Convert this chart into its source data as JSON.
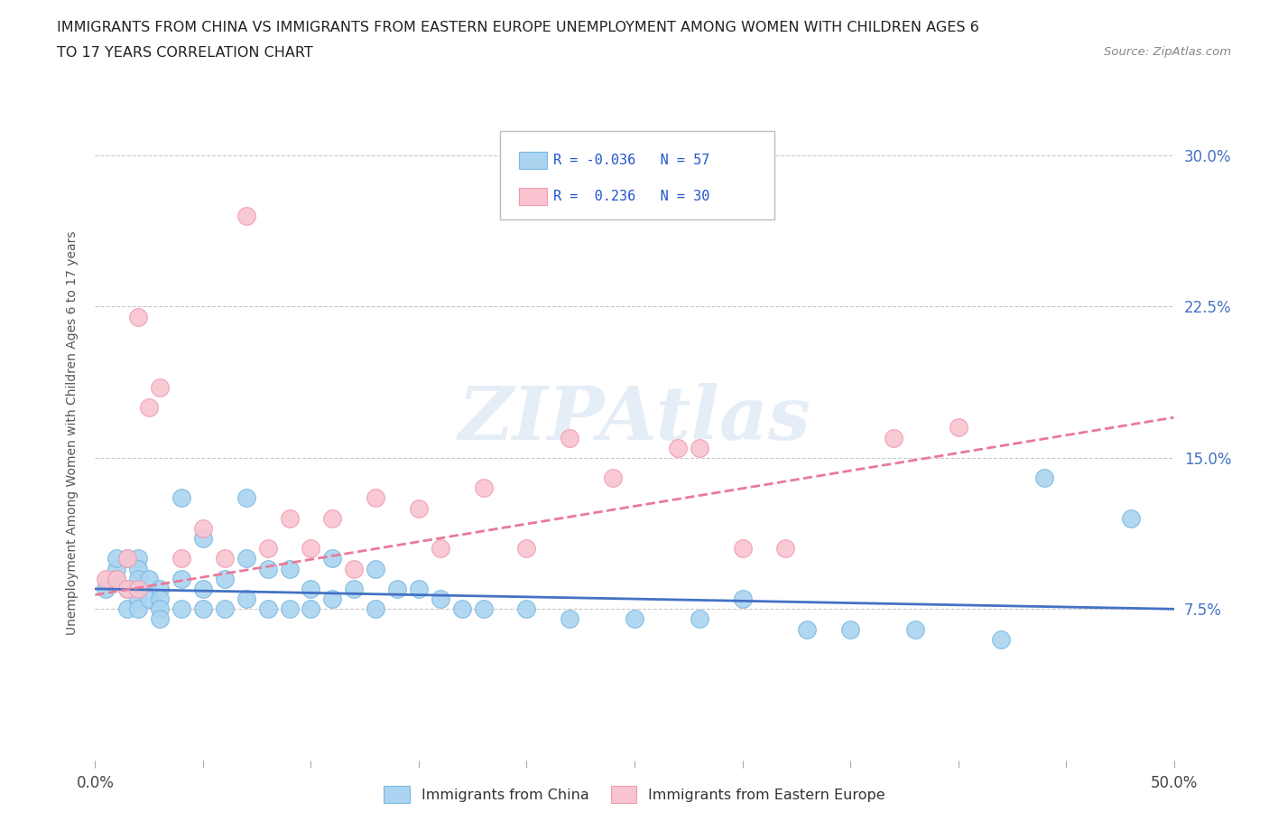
{
  "title_line1": "IMMIGRANTS FROM CHINA VS IMMIGRANTS FROM EASTERN EUROPE UNEMPLOYMENT AMONG WOMEN WITH CHILDREN AGES 6",
  "title_line2": "TO 17 YEARS CORRELATION CHART",
  "source": "Source: ZipAtlas.com",
  "ylabel": "Unemployment Among Women with Children Ages 6 to 17 years",
  "xlim": [
    0.0,
    0.5
  ],
  "ylim": [
    0.0,
    0.325
  ],
  "xticks": [
    0.0,
    0.05,
    0.1,
    0.15,
    0.2,
    0.25,
    0.3,
    0.35,
    0.4,
    0.45,
    0.5
  ],
  "ytick_positions": [
    0.075,
    0.15,
    0.225,
    0.3
  ],
  "ytick_labels": [
    "7.5%",
    "15.0%",
    "22.5%",
    "30.0%"
  ],
  "china_color": "#aad4f0",
  "china_edge_color": "#7ab8e0",
  "eastern_color": "#f9c4d0",
  "eastern_edge_color": "#f09ab0",
  "china_line_color": "#4472c4",
  "eastern_line_color": "#e87a9a",
  "china_N": 57,
  "eastern_N": 30,
  "legend_label_china": "Immigrants from China",
  "legend_label_eastern": "Immigrants from Eastern Europe",
  "watermark": "ZIPAtlas",
  "background_color": "#ffffff",
  "grid_color": "#c8c8c8",
  "china_scatter_x": [
    0.005,
    0.01,
    0.01,
    0.01,
    0.015,
    0.015,
    0.015,
    0.02,
    0.02,
    0.02,
    0.02,
    0.02,
    0.02,
    0.025,
    0.025,
    0.03,
    0.03,
    0.03,
    0.03,
    0.04,
    0.04,
    0.04,
    0.05,
    0.05,
    0.05,
    0.06,
    0.06,
    0.07,
    0.07,
    0.07,
    0.08,
    0.08,
    0.09,
    0.09,
    0.1,
    0.1,
    0.11,
    0.11,
    0.12,
    0.13,
    0.13,
    0.14,
    0.15,
    0.16,
    0.17,
    0.18,
    0.2,
    0.22,
    0.25,
    0.28,
    0.3,
    0.33,
    0.35,
    0.38,
    0.42,
    0.44,
    0.48
  ],
  "china_scatter_y": [
    0.085,
    0.095,
    0.1,
    0.09,
    0.1,
    0.085,
    0.075,
    0.1,
    0.095,
    0.09,
    0.085,
    0.08,
    0.075,
    0.09,
    0.08,
    0.085,
    0.08,
    0.075,
    0.07,
    0.13,
    0.09,
    0.075,
    0.11,
    0.085,
    0.075,
    0.09,
    0.075,
    0.13,
    0.1,
    0.08,
    0.095,
    0.075,
    0.095,
    0.075,
    0.085,
    0.075,
    0.1,
    0.08,
    0.085,
    0.095,
    0.075,
    0.085,
    0.085,
    0.08,
    0.075,
    0.075,
    0.075,
    0.07,
    0.07,
    0.07,
    0.08,
    0.065,
    0.065,
    0.065,
    0.06,
    0.14,
    0.12
  ],
  "eastern_scatter_x": [
    0.005,
    0.01,
    0.015,
    0.015,
    0.02,
    0.02,
    0.025,
    0.03,
    0.04,
    0.05,
    0.06,
    0.07,
    0.08,
    0.09,
    0.1,
    0.11,
    0.12,
    0.13,
    0.15,
    0.16,
    0.18,
    0.2,
    0.22,
    0.24,
    0.27,
    0.28,
    0.3,
    0.32,
    0.37,
    0.4
  ],
  "eastern_scatter_y": [
    0.09,
    0.09,
    0.1,
    0.085,
    0.22,
    0.085,
    0.175,
    0.185,
    0.1,
    0.115,
    0.1,
    0.27,
    0.105,
    0.12,
    0.105,
    0.12,
    0.095,
    0.13,
    0.125,
    0.105,
    0.135,
    0.105,
    0.16,
    0.14,
    0.155,
    0.155,
    0.105,
    0.105,
    0.16,
    0.165
  ],
  "china_trend_x": [
    0.0,
    0.5
  ],
  "china_trend_y": [
    0.085,
    0.075
  ],
  "eastern_trend_x": [
    0.0,
    0.5
  ],
  "eastern_trend_y": [
    0.082,
    0.17
  ]
}
